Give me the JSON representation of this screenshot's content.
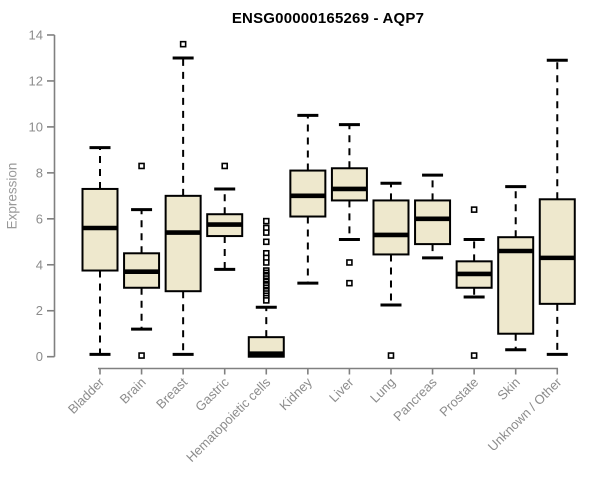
{
  "page": {
    "background": "#FFFFFF"
  },
  "chart_data": {
    "type": "boxplot",
    "title": "ENSG00000165269 - AQP7",
    "ylabel": "Expression",
    "xlabel": "",
    "ylim": [
      0,
      14
    ],
    "yticks": [
      0,
      2,
      4,
      6,
      8,
      10,
      12,
      14
    ],
    "grid": false,
    "legend": false,
    "categories": [
      "Bladder",
      "Brain",
      "Breast",
      "Gastric",
      "Hematopoietic cells",
      "Kidney",
      "Liver",
      "Lung",
      "Pancreas",
      "Prostate",
      "Skin",
      "Unknown / Other"
    ],
    "boxes": [
      {
        "category": "Bladder",
        "whisker_low": 0.1,
        "q1": 3.75,
        "median": 5.6,
        "q3": 7.3,
        "whisker_high": 9.1,
        "outliers": []
      },
      {
        "category": "Brain",
        "whisker_low": 1.2,
        "q1": 3.0,
        "median": 3.7,
        "q3": 4.5,
        "whisker_high": 6.4,
        "outliers": [
          8.3,
          0.05
        ]
      },
      {
        "category": "Breast",
        "whisker_low": 0.1,
        "q1": 2.85,
        "median": 5.4,
        "q3": 7.0,
        "whisker_high": 13.0,
        "outliers": [
          13.6
        ]
      },
      {
        "category": "Gastric",
        "whisker_low": 3.8,
        "q1": 5.25,
        "median": 5.75,
        "q3": 6.2,
        "whisker_high": 7.3,
        "outliers": [
          8.3
        ]
      },
      {
        "category": "Hematopoietic cells",
        "whisker_low": 0.0,
        "q1": 0.0,
        "median": 0.13,
        "q3": 0.85,
        "whisker_high": 2.15,
        "outliers": [
          5.9,
          5.6,
          5.4,
          5.0,
          4.5,
          4.3,
          4.1,
          3.75,
          3.65,
          3.55,
          3.5,
          3.4,
          3.3,
          3.25,
          3.15,
          3.1,
          3.0,
          2.9,
          2.85,
          2.75,
          2.65,
          2.55,
          2.45
        ]
      },
      {
        "category": "Kidney",
        "whisker_low": 3.2,
        "q1": 6.1,
        "median": 7.0,
        "q3": 8.1,
        "whisker_high": 10.5,
        "outliers": []
      },
      {
        "category": "Liver",
        "whisker_low": 5.1,
        "q1": 6.8,
        "median": 7.3,
        "q3": 8.2,
        "whisker_high": 10.1,
        "outliers": [
          4.1,
          3.2
        ]
      },
      {
        "category": "Lung",
        "whisker_low": 2.25,
        "q1": 4.45,
        "median": 5.3,
        "q3": 6.8,
        "whisker_high": 7.55,
        "outliers": [
          0.05
        ]
      },
      {
        "category": "Pancreas",
        "whisker_low": 4.3,
        "q1": 4.9,
        "median": 6.0,
        "q3": 6.8,
        "whisker_high": 7.9,
        "outliers": []
      },
      {
        "category": "Prostate",
        "whisker_low": 2.6,
        "q1": 3.0,
        "median": 3.6,
        "q3": 4.15,
        "whisker_high": 5.1,
        "outliers": [
          6.4,
          0.05
        ]
      },
      {
        "category": "Skin",
        "whisker_low": 0.3,
        "q1": 1.0,
        "median": 4.6,
        "q3": 5.2,
        "whisker_high": 7.4,
        "outliers": []
      },
      {
        "category": "Unknown / Other",
        "whisker_low": 0.1,
        "q1": 2.3,
        "median": 4.3,
        "q3": 6.85,
        "whisker_high": 12.9,
        "outliers": []
      }
    ],
    "colors": {
      "box_fill": "#EEE8CD",
      "box_border": "#000000",
      "median": "#000000",
      "whisker": "#000000",
      "outlier_stroke": "#000000",
      "outlier_fill": "#FFFFFF",
      "axis": "#808080",
      "tick_label": "#8C8C8C",
      "title": "#000000",
      "ylabel_color": "#999999"
    }
  }
}
